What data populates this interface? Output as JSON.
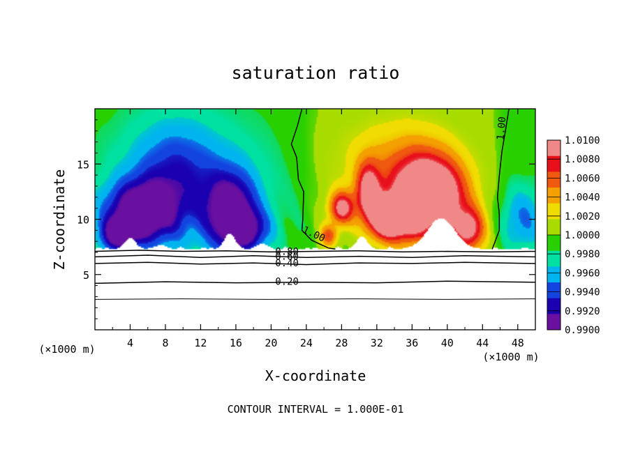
{
  "chart_data": {
    "type": "heatmap",
    "title": "saturation ratio",
    "xlabel": "X-coordinate",
    "ylabel": "Z-coordinate",
    "x_unit_left": "(×1000 m)",
    "x_unit_right": "(×1000 m)",
    "xlim": [
      0,
      50
    ],
    "ylim": [
      0,
      20
    ],
    "x_ticks": [
      4,
      8,
      12,
      16,
      20,
      24,
      28,
      32,
      36,
      40,
      44,
      48
    ],
    "y_ticks": [
      5,
      10,
      15
    ],
    "footer": "CONTOUR INTERVAL = 1.000E-01",
    "colorbar": {
      "labels": [
        "1.0100",
        "1.0080",
        "1.0060",
        "1.0040",
        "1.0020",
        "1.0000",
        "0.9980",
        "0.9960",
        "0.9940",
        "0.9920",
        "0.9900"
      ],
      "colors": [
        "#f08888",
        "#e8101a",
        "#f05a10",
        "#f4a000",
        "#f0dc00",
        "#a8dc00",
        "#28d000",
        "#00e0a0",
        "#00b4f0",
        "#1444e0",
        "#1a00b0",
        "#6a10a0"
      ]
    },
    "contours": [
      {
        "label": "1.00",
        "path": [
          [
            23.5,
            20
          ],
          [
            23.0,
            18.5
          ],
          [
            22.3,
            16.8
          ],
          [
            22.9,
            15.6
          ],
          [
            23.1,
            13.6
          ],
          [
            23.7,
            12.5
          ],
          [
            23.6,
            10.0
          ],
          [
            23.5,
            9.0
          ],
          [
            24.6,
            8.1
          ],
          [
            26.5,
            7.4
          ],
          [
            27.3,
            7.3
          ]
        ]
      },
      {
        "label": "1.00",
        "path": [
          [
            47.0,
            20
          ],
          [
            46.6,
            18.0
          ],
          [
            46.2,
            16.1
          ],
          [
            45.9,
            13.9
          ],
          [
            45.7,
            12.0
          ],
          [
            45.9,
            10.5
          ],
          [
            45.9,
            9.0
          ],
          [
            45.1,
            7.3
          ]
        ]
      },
      {
        "label": "0.80",
        "path": [
          [
            0,
            7.1
          ],
          [
            5,
            7.2
          ],
          [
            10,
            7.1
          ],
          [
            15,
            7.15
          ],
          [
            20,
            7.05
          ],
          [
            25,
            7.1
          ],
          [
            30,
            7.15
          ],
          [
            35,
            7.05
          ],
          [
            40,
            7.1
          ],
          [
            45,
            7.05
          ],
          [
            50,
            7.1
          ]
        ]
      },
      {
        "label": "0.60",
        "path": [
          [
            0,
            6.6
          ],
          [
            6,
            6.75
          ],
          [
            12,
            6.55
          ],
          [
            18,
            6.7
          ],
          [
            24,
            6.55
          ],
          [
            30,
            6.65
          ],
          [
            36,
            6.55
          ],
          [
            42,
            6.7
          ],
          [
            50,
            6.6
          ]
        ]
      },
      {
        "label": "0.40",
        "path": [
          [
            0,
            6.0
          ],
          [
            6,
            6.1
          ],
          [
            12,
            5.95
          ],
          [
            18,
            6.05
          ],
          [
            24,
            5.9
          ],
          [
            30,
            6.05
          ],
          [
            36,
            6.0
          ],
          [
            42,
            6.1
          ],
          [
            50,
            6.0
          ]
        ]
      },
      {
        "label": "0.20",
        "path": [
          [
            0,
            4.2
          ],
          [
            8,
            4.35
          ],
          [
            16,
            4.25
          ],
          [
            24,
            4.3
          ],
          [
            32,
            4.25
          ],
          [
            40,
            4.4
          ],
          [
            50,
            4.3
          ]
        ]
      },
      {
        "label": "",
        "path": [
          [
            0,
            2.75
          ],
          [
            10,
            2.8
          ],
          [
            20,
            2.75
          ],
          [
            30,
            2.8
          ],
          [
            40,
            2.75
          ],
          [
            50,
            2.8
          ]
        ]
      }
    ],
    "clear_air_top": 7.3,
    "dry_peaks": [
      {
        "x": 4.0,
        "height": 1.0
      },
      {
        "x": 7.5,
        "height": 0.4
      },
      {
        "x": 15.3,
        "height": 1.4
      },
      {
        "x": 19.0,
        "height": 0.5
      },
      {
        "x": 30.3,
        "height": 1.1
      },
      {
        "x": 39.3,
        "height": 2.8
      }
    ],
    "moist_cells": [
      {
        "x": 28.0,
        "z": 11.0,
        "sx": 1.4,
        "sz": 1.5,
        "amp": 0.009
      },
      {
        "x": 31.0,
        "z": 12.3,
        "sx": 1.4,
        "sz": 2.8,
        "amp": 0.0085
      },
      {
        "x": 32.8,
        "z": 10.0,
        "sx": 1.6,
        "sz": 1.8,
        "amp": 0.009
      },
      {
        "x": 38.5,
        "z": 12.0,
        "sx": 3.6,
        "sz": 3.3,
        "amp": 0.0115
      },
      {
        "x": 35.0,
        "z": 10.0,
        "sx": 2.2,
        "sz": 2.2,
        "amp": 0.0075
      },
      {
        "x": 42.5,
        "z": 9.0,
        "sx": 1.8,
        "sz": 2.0,
        "amp": 0.0085
      },
      {
        "x": 26.5,
        "z": 8.5,
        "sx": 1.0,
        "sz": 1.0,
        "amp": 0.006
      },
      {
        "x": 36.0,
        "z": 13.5,
        "sx": 4.5,
        "sz": 4.0,
        "amp": 0.0045
      },
      {
        "x": 33.0,
        "z": 15.0,
        "sx": 9.0,
        "sz": 5.0,
        "amp": 0.002
      }
    ],
    "dry_cells": [
      {
        "x": 5.0,
        "z": 10.5,
        "sx": 4.0,
        "sz": 2.8,
        "amp": -0.009
      },
      {
        "x": 2.5,
        "z": 8.5,
        "sx": 2.0,
        "sz": 1.5,
        "amp": -0.006
      },
      {
        "x": 15.5,
        "z": 10.5,
        "sx": 2.8,
        "sz": 3.5,
        "amp": -0.0085
      },
      {
        "x": 17.5,
        "z": 9.0,
        "sx": 2.5,
        "sz": 1.8,
        "amp": -0.005
      },
      {
        "x": 9.0,
        "z": 14.0,
        "sx": 5.0,
        "sz": 5.0,
        "amp": -0.004
      },
      {
        "x": 12.0,
        "z": 13.0,
        "sx": 10.0,
        "sz": 6.0,
        "amp": -0.0025
      },
      {
        "x": 48.5,
        "z": 10.0,
        "sx": 2.5,
        "sz": 3.0,
        "amp": -0.004
      }
    ]
  }
}
